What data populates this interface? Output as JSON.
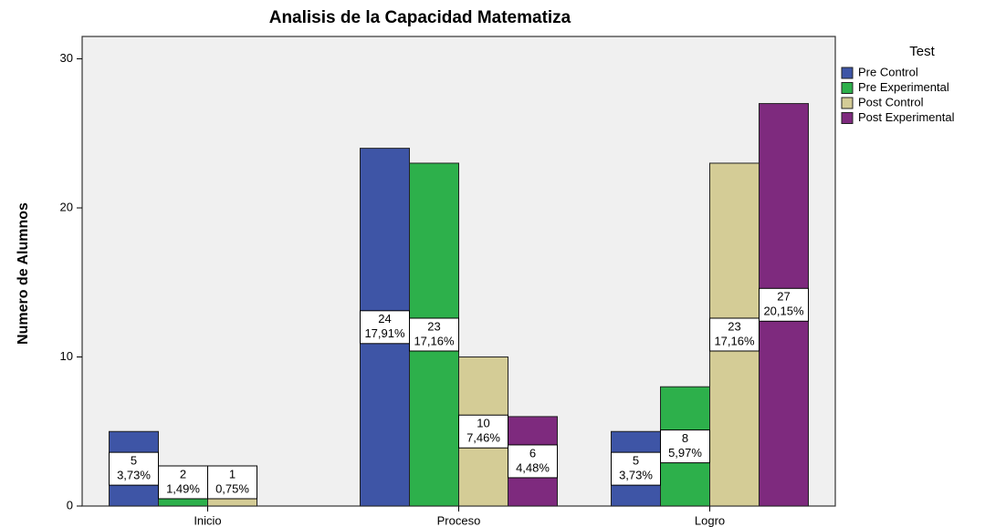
{
  "chart_data": {
    "type": "bar",
    "title": "Analisis de la Capacidad  Matematiza",
    "y_label": "Numero de Alumnos",
    "legend_title": "Test",
    "legend_position": "right",
    "categories": [
      "Inicio",
      "Proceso",
      "Logro"
    ],
    "series": [
      {
        "name": "Pre Control",
        "color": "#3e55a6",
        "values": [
          5,
          24,
          5
        ],
        "percent_labels": [
          "3,73%",
          "17,91%",
          "3,73%"
        ]
      },
      {
        "name": "Pre Experimental",
        "color": "#2db04b",
        "values": [
          2,
          23,
          8
        ],
        "percent_labels": [
          "1,49%",
          "17,16%",
          "5,97%"
        ]
      },
      {
        "name": "Post Control",
        "color": "#d4cc96",
        "values": [
          1,
          10,
          23
        ],
        "percent_labels": [
          "0,75%",
          "7,46%",
          "17,16%"
        ]
      },
      {
        "name": "Post Experimental",
        "color": "#7e2a7e",
        "values": [
          null,
          6,
          27
        ],
        "percent_labels": [
          null,
          "4,48%",
          "20,15%"
        ]
      }
    ],
    "ylim": [
      0,
      31.5
    ],
    "yticks": [
      0,
      10,
      20,
      30
    ],
    "grid": false
  }
}
